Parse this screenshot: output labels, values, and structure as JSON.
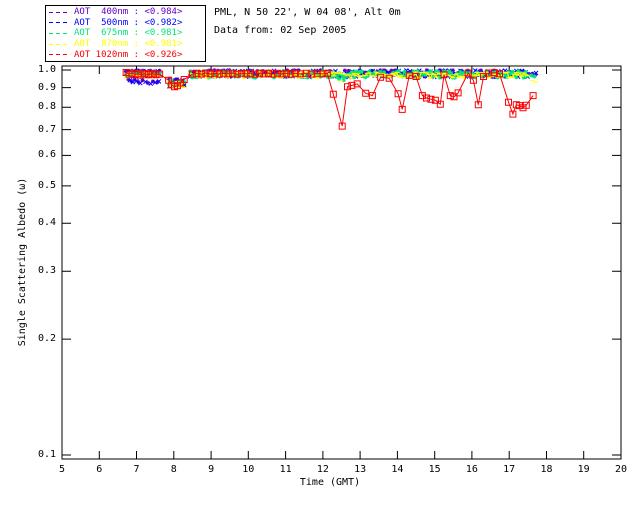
{
  "header": {
    "line1": "PML, N 50 22', W 04 08', Alt 0m",
    "line2": "Data from: 02 Sep 2005"
  },
  "chart_data": {
    "type": "scatter",
    "title": "",
    "xlabel": "Time (GMT)",
    "ylabel": "Single Scattering Albedo (ω)",
    "xlim": [
      5,
      20
    ],
    "ylim": [
      0.1,
      1.0
    ],
    "yscale": "log",
    "grid": false,
    "legend_position": "top-left",
    "axis_color": "#000000",
    "background": "#ffffff",
    "xtick_values": [
      5,
      6,
      7,
      8,
      9,
      10,
      11,
      12,
      13,
      14,
      15,
      16,
      17,
      18,
      19,
      20
    ],
    "xtick_labels": [
      "5",
      "6",
      "7",
      "8",
      "9",
      "10",
      "11",
      "12",
      "13",
      "14",
      "15",
      "16",
      "17",
      "18",
      "19",
      "20"
    ],
    "ytick_values": [
      1.0,
      0.9,
      0.8,
      0.7,
      0.6,
      0.5,
      0.4,
      0.3,
      0.2,
      0.1
    ],
    "ytick_labels": [
      "1.0",
      "0.9",
      "0.8",
      "0.7",
      "0.6",
      "0.5",
      "0.4",
      "0.3",
      "0.2",
      "0.1"
    ],
    "series": [
      {
        "name": "AOT 400nm",
        "legend_label": "AOT  400nm : <0.984>",
        "mean": 0.984,
        "color": "#6400C8",
        "marker": "asterisk",
        "line": false,
        "band": {
          "step": 0.05,
          "offset": 0.0,
          "segments": [
            {
              "t0": 6.72,
              "t1": 7.66,
              "vmin": 0.962,
              "vmax": 0.998
            },
            {
              "t0": 7.88,
              "t1": 8.3,
              "vmin": 0.908,
              "vmax": 0.95
            },
            {
              "t0": 8.44,
              "t1": 17.5,
              "vmin": 0.96,
              "vmax": 0.999
            }
          ]
        },
        "extra": [
          [
            6.78,
            0.946
          ],
          [
            6.86,
            0.936
          ],
          [
            6.95,
            0.944
          ],
          [
            7.05,
            0.93
          ],
          [
            7.16,
            0.94
          ],
          [
            7.3,
            0.926
          ],
          [
            7.44,
            0.934
          ],
          [
            7.56,
            0.93
          ],
          [
            17.62,
            0.978
          ],
          [
            17.7,
            0.972
          ]
        ]
      },
      {
        "name": "AOT 500nm",
        "legend_label": "AOT  500nm : <0.982>",
        "mean": 0.982,
        "color": "#0000FF",
        "marker": "x",
        "line": false,
        "band": {
          "step": 0.05,
          "offset": 0.002,
          "segments": [
            {
              "t0": 6.72,
              "t1": 7.66,
              "vmin": 0.962,
              "vmax": 0.998
            },
            {
              "t0": 7.88,
              "t1": 8.3,
              "vmin": 0.908,
              "vmax": 0.95
            },
            {
              "t0": 8.44,
              "t1": 17.5,
              "vmin": 0.96,
              "vmax": 0.999
            }
          ]
        },
        "extra": [
          [
            6.82,
            0.94
          ],
          [
            6.9,
            0.93
          ],
          [
            7.0,
            0.936
          ],
          [
            7.1,
            0.924
          ],
          [
            7.24,
            0.932
          ],
          [
            7.38,
            0.922
          ],
          [
            7.5,
            0.928
          ],
          [
            7.6,
            0.934
          ],
          [
            17.58,
            0.976
          ],
          [
            17.66,
            0.97
          ],
          [
            17.72,
            0.982
          ]
        ]
      },
      {
        "name": "AOT 675nm",
        "legend_label": "AOT  675nm : <0.981>",
        "mean": 0.981,
        "color": "#00E678",
        "marker": "asterisk",
        "line": true,
        "band": {
          "step": 0.05,
          "offset": 0.005,
          "segments": [
            {
              "t0": 6.72,
              "t1": 7.66,
              "vmin": 0.962,
              "vmax": 0.998
            },
            {
              "t0": 7.88,
              "t1": 8.3,
              "vmin": 0.908,
              "vmax": 0.95
            },
            {
              "t0": 8.44,
              "t1": 17.5,
              "vmin": 0.96,
              "vmax": 0.999
            }
          ]
        },
        "extra": [
          [
            12.44,
            0.946
          ],
          [
            12.56,
            0.94
          ],
          [
            17.6,
            0.968
          ],
          [
            17.68,
            0.962
          ]
        ]
      },
      {
        "name": "AOT 870nm",
        "legend_label": "AOT  870nm : <0.981>",
        "mean": 0.981,
        "color": "#FFFF00",
        "marker": "dash",
        "line": true,
        "band": {
          "step": 0.05,
          "offset": 0.009,
          "segments": [
            {
              "t0": 6.72,
              "t1": 7.66,
              "vmin": 0.962,
              "vmax": 0.998
            },
            {
              "t0": 7.88,
              "t1": 8.3,
              "vmin": 0.908,
              "vmax": 0.95
            },
            {
              "t0": 8.44,
              "t1": 17.5,
              "vmin": 0.96,
              "vmax": 0.999
            }
          ]
        },
        "extra": [
          [
            12.48,
            0.938
          ],
          [
            17.62,
            0.94
          ],
          [
            17.7,
            0.93
          ]
        ]
      },
      {
        "name": "AOT 1020nm",
        "legend_label": "AOT 1020nm : <0.926>",
        "mean": 0.926,
        "color": "#FF0000",
        "marker": "square",
        "line": true,
        "points": [
          [
            6.72,
            0.985
          ],
          [
            6.8,
            0.975
          ],
          [
            6.88,
            0.982
          ],
          [
            6.96,
            0.972
          ],
          [
            7.04,
            0.978
          ],
          [
            7.12,
            0.97
          ],
          [
            7.22,
            0.978
          ],
          [
            7.32,
            0.972
          ],
          [
            7.42,
            0.978
          ],
          [
            7.52,
            0.972
          ],
          [
            7.62,
            0.976
          ],
          [
            7.86,
            0.94
          ],
          [
            7.94,
            0.915
          ],
          [
            8.02,
            0.905
          ],
          [
            8.1,
            0.91
          ],
          [
            8.18,
            0.925
          ],
          [
            8.28,
            0.945
          ],
          [
            8.5,
            0.976
          ],
          [
            8.62,
            0.981
          ],
          [
            8.74,
            0.976
          ],
          [
            8.86,
            0.982
          ],
          [
            8.98,
            0.977
          ],
          [
            9.1,
            0.981
          ],
          [
            9.22,
            0.976
          ],
          [
            9.34,
            0.981
          ],
          [
            9.46,
            0.977
          ],
          [
            9.58,
            0.981
          ],
          [
            9.7,
            0.976
          ],
          [
            9.82,
            0.981
          ],
          [
            9.94,
            0.977
          ],
          [
            10.06,
            0.981
          ],
          [
            10.18,
            0.976
          ],
          [
            10.3,
            0.981
          ],
          [
            10.42,
            0.977
          ],
          [
            10.54,
            0.981
          ],
          [
            10.66,
            0.976
          ],
          [
            10.78,
            0.981
          ],
          [
            10.9,
            0.977
          ],
          [
            11.02,
            0.981
          ],
          [
            11.14,
            0.976
          ],
          [
            11.26,
            0.981
          ],
          [
            11.4,
            0.977
          ],
          [
            11.55,
            0.981
          ],
          [
            11.7,
            0.976
          ],
          [
            11.85,
            0.981
          ],
          [
            12.0,
            0.977
          ],
          [
            12.12,
            0.98
          ],
          [
            12.28,
            0.865
          ],
          [
            12.52,
            0.715
          ],
          [
            12.66,
            0.905
          ],
          [
            12.78,
            0.912
          ],
          [
            12.92,
            0.92
          ],
          [
            13.15,
            0.87
          ],
          [
            13.33,
            0.858
          ],
          [
            13.55,
            0.958
          ],
          [
            13.78,
            0.952
          ],
          [
            14.02,
            0.868
          ],
          [
            14.13,
            0.79
          ],
          [
            14.32,
            0.968
          ],
          [
            14.5,
            0.962
          ],
          [
            14.67,
            0.858
          ],
          [
            14.78,
            0.846
          ],
          [
            14.9,
            0.84
          ],
          [
            15.02,
            0.835
          ],
          [
            15.15,
            0.815
          ],
          [
            15.25,
            0.972
          ],
          [
            15.42,
            0.858
          ],
          [
            15.52,
            0.852
          ],
          [
            15.63,
            0.872
          ],
          [
            15.9,
            0.982
          ],
          [
            16.04,
            0.94
          ],
          [
            16.17,
            0.812
          ],
          [
            16.31,
            0.962
          ],
          [
            16.45,
            0.982
          ],
          [
            16.6,
            0.984
          ],
          [
            16.74,
            0.978
          ],
          [
            16.98,
            0.825
          ],
          [
            17.1,
            0.768
          ],
          [
            17.19,
            0.812
          ],
          [
            17.27,
            0.808
          ],
          [
            17.37,
            0.798
          ],
          [
            17.46,
            0.81
          ],
          [
            17.64,
            0.858
          ]
        ]
      }
    ]
  }
}
